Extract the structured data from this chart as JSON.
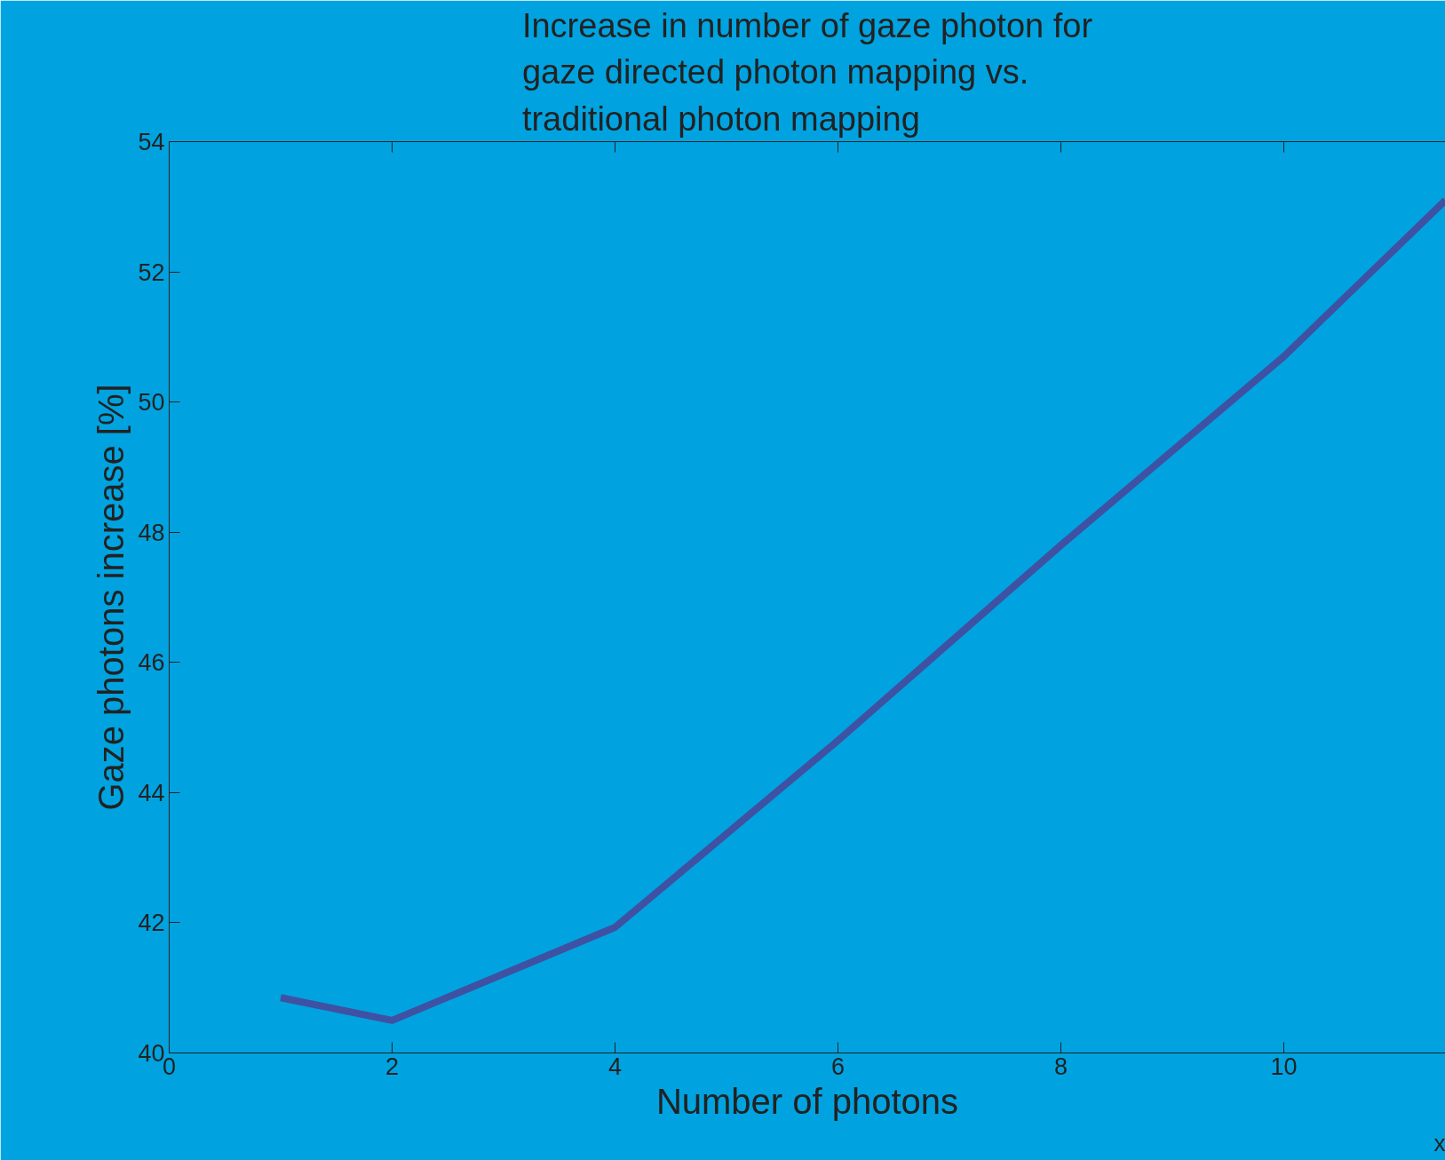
{
  "chart_data": {
    "type": "line",
    "title": "Increase in number of gaze photon for\ngaze directed photon mapping vs.\ntraditional photon mapping",
    "xlabel": "Number of photons",
    "ylabel": "Gaze photons increase [%]",
    "x": [
      1,
      2,
      4,
      6,
      8,
      10,
      11.45
    ],
    "series": [
      {
        "color": "#3f51a3",
        "values": [
          40.85,
          40.5,
          41.93,
          44.8,
          47.8,
          50.7,
          53.1
        ]
      }
    ],
    "xlim": [
      0,
      11.45
    ],
    "ylim": [
      40,
      54
    ],
    "xticks": [
      0,
      2,
      4,
      6,
      8,
      10
    ],
    "yticks": [
      40,
      42,
      44,
      46,
      48,
      50,
      52,
      54
    ],
    "annotations": [
      "x"
    ],
    "grid": false,
    "marker": "none",
    "line_style": "solid"
  }
}
